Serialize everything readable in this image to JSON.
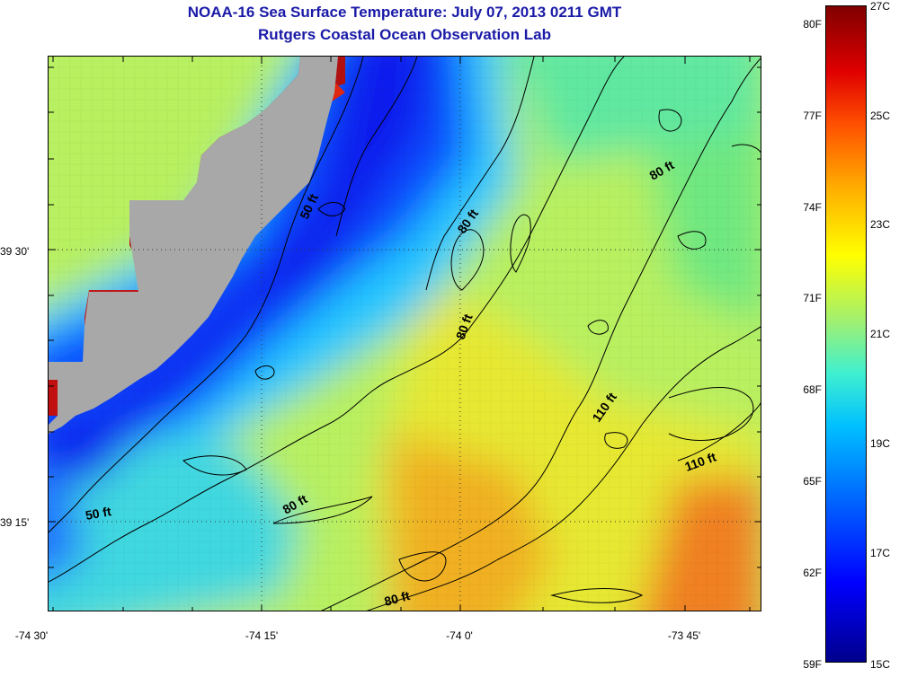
{
  "title": {
    "line1": "NOAA-16 Sea Surface Temperature:  July 07, 2013 0211 GMT",
    "line2": "Rutgers Coastal Ocean Observation Lab"
  },
  "latitude_labels": [
    "39 30'",
    "39 15'"
  ],
  "longitude_labels": [
    "-74 30'",
    "-74 15'",
    "-74 0'",
    "-73 45'"
  ],
  "depth_contour_labels": [
    "50 ft",
    "50 ft",
    "80 ft",
    "80 ft",
    "80 ft",
    "80 ft",
    "80 ft",
    "110 ft",
    "110 ft"
  ],
  "colorbar": {
    "fahrenheit_labels": [
      "80F",
      "77F",
      "74F",
      "71F",
      "68F",
      "65F",
      "62F",
      "59F"
    ],
    "celsius_labels": [
      "27C",
      "25C",
      "23C",
      "21C",
      "19C",
      "17C",
      "15C"
    ],
    "range_celsius": [
      15,
      27
    ],
    "colors": [
      "#00008c",
      "#0000ff",
      "#00c0ff",
      "#a0f070",
      "#ffff00",
      "#ff5000",
      "#800000"
    ]
  },
  "colors": {
    "land": "#a8a8a8",
    "title": "#1a1aa8",
    "contour": "#000000"
  }
}
